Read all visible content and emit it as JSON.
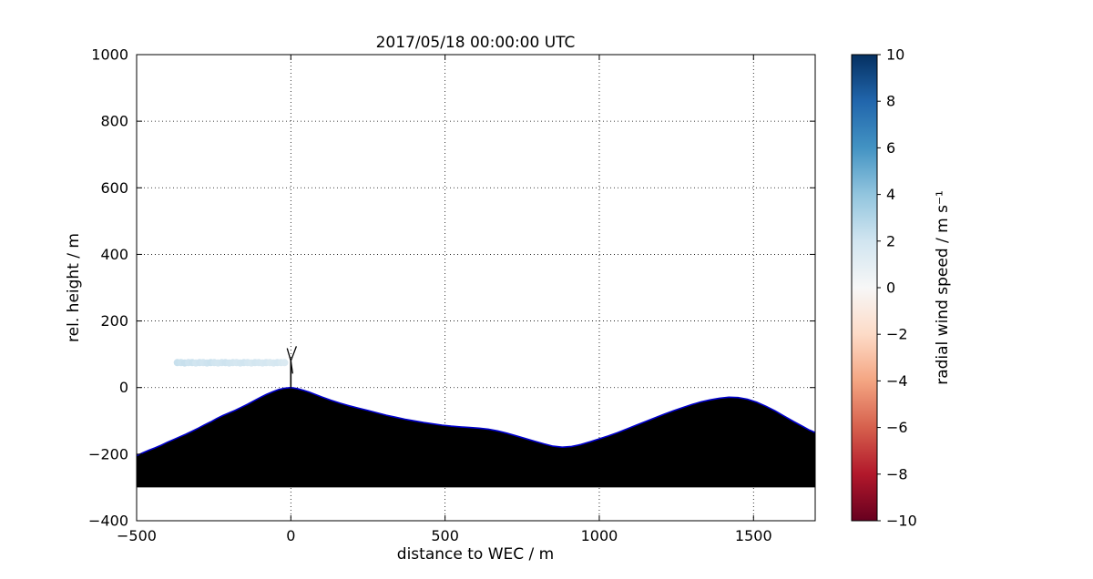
{
  "chart_data": {
    "type": "scatter",
    "title": "2017/05/18 00:00:00 UTC",
    "xlabel": "distance to WEC / m",
    "ylabel": "rel. height / m",
    "xlim": [
      -500,
      1700
    ],
    "ylim": [
      -400,
      1000
    ],
    "grid": true,
    "xticks": {
      "values": [
        -500,
        0,
        500,
        1000,
        1500
      ],
      "labels": [
        "−500",
        "0",
        "500",
        "1000",
        "1500"
      ]
    },
    "yticks": {
      "values": [
        -400,
        -200,
        0,
        200,
        400,
        600,
        800,
        1000
      ],
      "labels": [
        "−400",
        "−200",
        "0",
        "200",
        "400",
        "600",
        "800",
        "1000"
      ]
    },
    "terrain": {
      "fill_color": "#000000",
      "line_color": "#0000cd",
      "base_height": -300,
      "profile": [
        [
          -500,
          -205
        ],
        [
          -480,
          -196
        ],
        [
          -460,
          -188
        ],
        [
          -440,
          -181
        ],
        [
          -420,
          -173
        ],
        [
          -400,
          -164
        ],
        [
          -380,
          -156
        ],
        [
          -360,
          -148
        ],
        [
          -340,
          -140
        ],
        [
          -320,
          -131
        ],
        [
          -300,
          -122
        ],
        [
          -280,
          -112
        ],
        [
          -260,
          -103
        ],
        [
          -240,
          -93
        ],
        [
          -220,
          -84
        ],
        [
          -200,
          -76
        ],
        [
          -180,
          -68
        ],
        [
          -160,
          -59
        ],
        [
          -140,
          -50
        ],
        [
          -120,
          -40
        ],
        [
          -100,
          -30
        ],
        [
          -80,
          -21
        ],
        [
          -60,
          -13
        ],
        [
          -40,
          -6
        ],
        [
          -20,
          -2
        ],
        [
          0,
          0
        ],
        [
          20,
          -3
        ],
        [
          40,
          -8
        ],
        [
          60,
          -14
        ],
        [
          80,
          -21
        ],
        [
          100,
          -28
        ],
        [
          130,
          -38
        ],
        [
          160,
          -47
        ],
        [
          190,
          -55
        ],
        [
          220,
          -62
        ],
        [
          250,
          -69
        ],
        [
          280,
          -76
        ],
        [
          310,
          -83
        ],
        [
          340,
          -89
        ],
        [
          370,
          -95
        ],
        [
          400,
          -100
        ],
        [
          430,
          -105
        ],
        [
          460,
          -109
        ],
        [
          490,
          -113
        ],
        [
          520,
          -116
        ],
        [
          550,
          -118
        ],
        [
          580,
          -120
        ],
        [
          610,
          -122
        ],
        [
          640,
          -125
        ],
        [
          670,
          -130
        ],
        [
          700,
          -137
        ],
        [
          730,
          -145
        ],
        [
          760,
          -153
        ],
        [
          790,
          -161
        ],
        [
          820,
          -169
        ],
        [
          850,
          -176
        ],
        [
          880,
          -179
        ],
        [
          910,
          -177
        ],
        [
          940,
          -171
        ],
        [
          970,
          -163
        ],
        [
          1000,
          -154
        ],
        [
          1030,
          -145
        ],
        [
          1060,
          -135
        ],
        [
          1090,
          -124
        ],
        [
          1120,
          -113
        ],
        [
          1150,
          -102
        ],
        [
          1180,
          -91
        ],
        [
          1210,
          -80
        ],
        [
          1240,
          -70
        ],
        [
          1270,
          -60
        ],
        [
          1300,
          -51
        ],
        [
          1330,
          -43
        ],
        [
          1360,
          -37
        ],
        [
          1390,
          -32
        ],
        [
          1420,
          -29
        ],
        [
          1450,
          -30
        ],
        [
          1480,
          -35
        ],
        [
          1510,
          -44
        ],
        [
          1540,
          -56
        ],
        [
          1570,
          -70
        ],
        [
          1600,
          -86
        ],
        [
          1630,
          -102
        ],
        [
          1660,
          -117
        ],
        [
          1680,
          -127
        ],
        [
          1700,
          -135
        ]
      ]
    },
    "turbine": {
      "x": 0,
      "base_height": 0,
      "hub_height": 80,
      "blade_tips": [
        [
          18,
          124
        ],
        [
          -12,
          118
        ],
        [
          6,
          42
        ]
      ],
      "color": "#000000"
    },
    "scan_points": {
      "marker_radius_px": 4,
      "points": [
        [
          -368,
          75,
          2.3
        ],
        [
          -356,
          75,
          2.2
        ],
        [
          -344,
          74,
          2.3
        ],
        [
          -332,
          75,
          2.1
        ],
        [
          -320,
          75,
          2.2
        ],
        [
          -308,
          74,
          2.0
        ],
        [
          -296,
          75,
          2.1
        ],
        [
          -284,
          75,
          2.0
        ],
        [
          -272,
          74,
          2.1
        ],
        [
          -260,
          75,
          2.2
        ],
        [
          -248,
          75,
          2.0
        ],
        [
          -236,
          74,
          1.9
        ],
        [
          -224,
          75,
          2.0
        ],
        [
          -212,
          75,
          2.1
        ],
        [
          -200,
          74,
          2.0
        ],
        [
          -188,
          75,
          1.9
        ],
        [
          -176,
          75,
          1.8
        ],
        [
          -164,
          74,
          1.9
        ],
        [
          -152,
          75,
          2.0
        ],
        [
          -140,
          75,
          1.8
        ],
        [
          -128,
          74,
          1.7
        ],
        [
          -116,
          75,
          1.9
        ],
        [
          -104,
          75,
          1.8
        ],
        [
          -92,
          74,
          1.7
        ],
        [
          -80,
          75,
          1.8
        ],
        [
          -68,
          75,
          1.6
        ],
        [
          -56,
          74,
          1.7
        ],
        [
          -44,
          75,
          1.8
        ],
        [
          -32,
          75,
          1.6
        ],
        [
          -20,
          75,
          1.5
        ]
      ]
    },
    "colorbar": {
      "label": "radial wind speed / m s⁻¹",
      "vmin": -10,
      "vmax": 10,
      "ticks": {
        "values": [
          10,
          8,
          6,
          4,
          2,
          0,
          -2,
          -4,
          -6,
          -8,
          -10
        ],
        "labels": [
          "10",
          "8",
          "6",
          "4",
          "2",
          "0",
          "−2",
          "−4",
          "−6",
          "−8",
          "−10"
        ]
      },
      "stops": [
        {
          "v": -10,
          "c": "#67001f"
        },
        {
          "v": -8,
          "c": "#b2182b"
        },
        {
          "v": -6,
          "c": "#d6604d"
        },
        {
          "v": -4,
          "c": "#f4a582"
        },
        {
          "v": -2,
          "c": "#fddbc7"
        },
        {
          "v": 0,
          "c": "#f7f7f7"
        },
        {
          "v": 2,
          "c": "#d1e5f0"
        },
        {
          "v": 4,
          "c": "#92c5de"
        },
        {
          "v": 6,
          "c": "#4393c3"
        },
        {
          "v": 8,
          "c": "#2166ac"
        },
        {
          "v": 10,
          "c": "#053061"
        }
      ]
    }
  }
}
